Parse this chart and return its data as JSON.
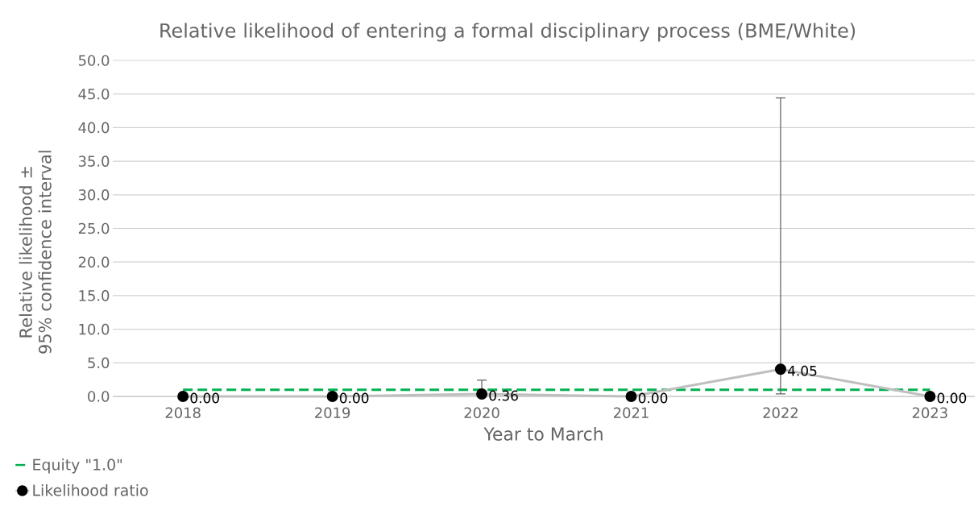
{
  "chart_data": {
    "type": "line",
    "title": "Relative likelihood of entering a formal disciplinary process (BME/White)",
    "xlabel": "Year to March",
    "ylabel": "Relative likelihood ± 95% confidence interval",
    "categories": [
      "2018",
      "2019",
      "2020",
      "2021",
      "2022",
      "2023"
    ],
    "series": [
      {
        "name": "Equity \"1.0\"",
        "color": "#00b050",
        "values": [
          1,
          1,
          1,
          1,
          1,
          1
        ],
        "line_style": "dashed",
        "marker": "none"
      },
      {
        "name": "Likelihood ratio",
        "color": "#bfbfbf",
        "values": [
          0,
          0,
          0.36,
          0,
          4.05,
          0
        ],
        "marker": "circle",
        "line_style": "solid",
        "value_labels": [
          "0.00",
          "0.00",
          "0.36",
          "0.00",
          "4.05",
          "0.00"
        ],
        "errors": [
          null,
          null,
          [
            0.1,
            2.5
          ],
          null,
          [
            0.3,
            44.5
          ],
          null
        ]
      }
    ],
    "ylim": [
      0,
      50
    ],
    "yticks": [
      {
        "value": 0,
        "label": "0.0"
      },
      {
        "value": 5,
        "label": "5.0"
      },
      {
        "value": 10,
        "label": "10.0"
      },
      {
        "value": 15,
        "label": "15.0"
      },
      {
        "value": 20,
        "label": "20.0"
      },
      {
        "value": 25,
        "label": "25.0"
      },
      {
        "value": 30,
        "label": "30.0"
      },
      {
        "value": 35,
        "label": "35.0"
      },
      {
        "value": 40,
        "label": "40.0"
      },
      {
        "value": 45,
        "label": "45.0"
      },
      {
        "value": 50,
        "label": "50.0"
      }
    ],
    "grid": "y",
    "legend": "bottom left"
  }
}
